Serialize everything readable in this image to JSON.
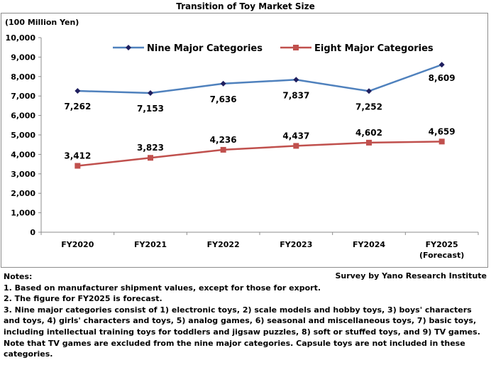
{
  "chart_data": {
    "type": "line",
    "title": "Transition of Toy Market Size",
    "ylabel": "(100 Million Yen)",
    "ylim": [
      0,
      10000
    ],
    "yticks": [
      "0",
      "1,000",
      "2,000",
      "3,000",
      "4,000",
      "5,000",
      "6,000",
      "7,000",
      "8,000",
      "9,000",
      "10,000"
    ],
    "categories": [
      "FY2020",
      "FY2021",
      "FY2022",
      "FY2023",
      "FY2024",
      "FY2025"
    ],
    "category_sublabels": [
      "",
      "",
      "",
      "",
      "",
      "(Forecast)"
    ],
    "grid": false,
    "legend": "top",
    "series": [
      {
        "name": "Nine Major Categories",
        "color": "#4f81bd",
        "marker": "diamond",
        "values": [
          7262,
          7153,
          7636,
          7837,
          7252,
          8609
        ],
        "labels": [
          "7,262",
          "7,153",
          "7,636",
          "7,837",
          "7,252",
          "8,609"
        ]
      },
      {
        "name": "Eight Major Categories",
        "color": "#c0504d",
        "marker": "square",
        "values": [
          3412,
          3823,
          4236,
          4437,
          4602,
          4659
        ],
        "labels": [
          "3,412",
          "3,823",
          "4,236",
          "4,437",
          "4,602",
          "4,659"
        ]
      }
    ]
  },
  "notes": {
    "heading": "Notes:",
    "credit": "Survey by Yano Research Institute",
    "lines": [
      "1. Based on manufacturer shipment values, except for those for export.",
      "2. The figure for FY2025 is forecast.",
      "3. Nine major categories consist of 1) electronic toys, 2) scale models and hobby toys, 3) boys' characters and toys, 4) girls' characters and toys, 5) analog games, 6) seasonal and miscellaneous toys, 7) basic toys, including intellectual training toys for toddlers and jigsaw puzzles, 8) soft or stuffed toys, and 9) TV games. Note that TV games are excluded from the nine major categories. Capsule toys are not included in these categories."
    ]
  }
}
